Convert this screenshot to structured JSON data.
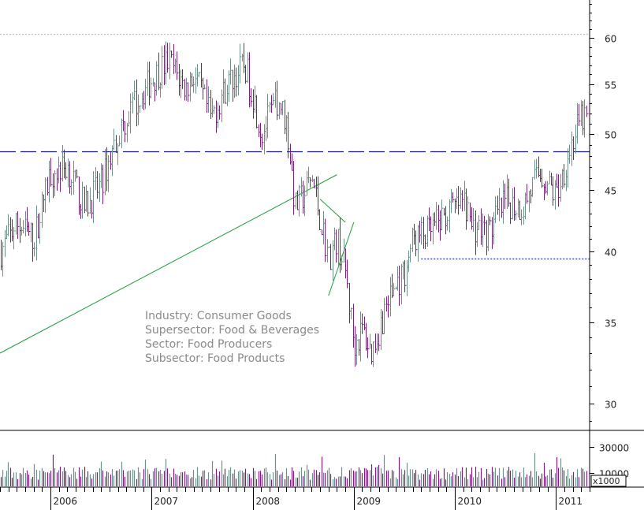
{
  "chart_data": {
    "type": "ohlc",
    "scale": "log",
    "y_axis": {
      "ticks": [
        30,
        35,
        40,
        45,
        50,
        55,
        60
      ],
      "range": [
        28.5,
        64.5
      ],
      "position": "right"
    },
    "x_axis": {
      "labels": [
        "2006",
        "2007",
        "2008",
        "2009",
        "2010",
        "2011"
      ],
      "range": [
        "2005-07",
        "2011-05"
      ]
    },
    "volume_axis": {
      "ticks": [
        10000,
        30000
      ],
      "tick_labels": [
        "10000",
        "30000"
      ],
      "unit": "x1000",
      "range": [
        0,
        42000
      ]
    },
    "info": [
      "Industry: Consumer Goods",
      "Supersector: Food & Beverages",
      "Sector: Food Producers",
      "Subsector: Food Products"
    ],
    "reference_lines": [
      {
        "kind": "resistance",
        "style": "dotted",
        "color": "#c0c0c0",
        "value": 60.5
      },
      {
        "kind": "support",
        "style": "dashed",
        "color": "#1a1a8c",
        "value": 48.4
      },
      {
        "kind": "support",
        "style": "dotted",
        "color": "#2a2ad0",
        "value": 39.5,
        "from": "2009-09"
      }
    ],
    "trend_lines": [
      {
        "color": "#1f9e3a",
        "points": [
          [
            "2005-07",
            33.0
          ],
          [
            "2008-11",
            46.3
          ]
        ]
      },
      {
        "color": "#1f9e3a",
        "points": [
          [
            "2008-09",
            44.2
          ],
          [
            "2008-12",
            42.3
          ]
        ]
      },
      {
        "color": "#1f9e3a",
        "points": [
          [
            "2008-10",
            36.8
          ],
          [
            "2009-01",
            42.3
          ]
        ]
      }
    ],
    "price_anchors": [
      [
        "2005-07",
        40.0
      ],
      [
        "2005-09",
        42.2
      ],
      [
        "2005-11",
        41.0
      ],
      [
        "2006-01",
        46.5
      ],
      [
        "2006-03",
        47.0
      ],
      [
        "2006-05",
        43.5
      ],
      [
        "2006-07",
        45.5
      ],
      [
        "2006-09",
        50.0
      ],
      [
        "2006-11",
        53.0
      ],
      [
        "2007-01",
        55.5
      ],
      [
        "2007-03",
        57.5
      ],
      [
        "2007-05",
        54.5
      ],
      [
        "2007-06",
        56.0
      ],
      [
        "2007-08",
        51.5
      ],
      [
        "2007-10",
        55.0
      ],
      [
        "2007-12",
        57.0
      ],
      [
        "2008-01",
        54.0
      ],
      [
        "2008-02",
        50.0
      ],
      [
        "2008-04",
        53.5
      ],
      [
        "2008-05",
        51.0
      ],
      [
        "2008-06",
        43.5
      ],
      [
        "2008-07",
        44.5
      ],
      [
        "2008-08",
        46.0
      ],
      [
        "2008-09",
        42.5
      ],
      [
        "2008-10",
        39.5
      ],
      [
        "2008-11",
        41.0
      ],
      [
        "2008-12",
        38.5
      ],
      [
        "2009-01",
        33.5
      ],
      [
        "2009-02",
        34.5
      ],
      [
        "2009-03",
        33.0
      ],
      [
        "2009-04",
        34.5
      ],
      [
        "2009-05",
        36.5
      ],
      [
        "2009-07",
        38.5
      ],
      [
        "2009-08",
        41.0
      ],
      [
        "2009-10",
        41.5
      ],
      [
        "2009-12",
        43.0
      ],
      [
        "2010-02",
        44.0
      ],
      [
        "2010-03",
        42.0
      ],
      [
        "2010-05",
        41.5
      ],
      [
        "2010-07",
        44.0
      ],
      [
        "2010-09",
        43.5
      ],
      [
        "2010-11",
        46.5
      ],
      [
        "2011-01",
        44.5
      ],
      [
        "2011-03",
        49.5
      ],
      [
        "2011-04",
        51.5
      ]
    ]
  }
}
